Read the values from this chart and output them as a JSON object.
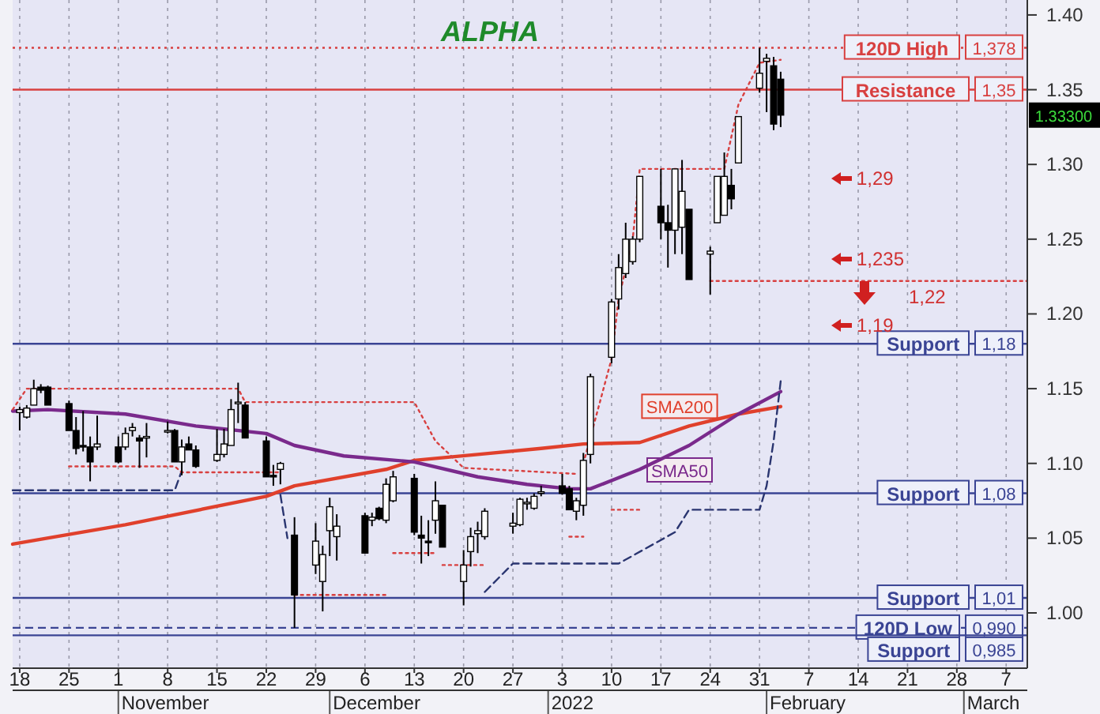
{
  "chart_data": {
    "type": "candlestick",
    "title": "ALPHA",
    "x": [
      "2021-10-18",
      "2021-10-19",
      "2021-10-20",
      "2021-10-21",
      "2021-10-22",
      "2021-10-25",
      "2021-10-26",
      "2021-10-27",
      "2021-10-28",
      "2021-10-29",
      "2021-11-01",
      "2021-11-02",
      "2021-11-03",
      "2021-11-04",
      "2021-11-05",
      "2021-11-08",
      "2021-11-09",
      "2021-11-10",
      "2021-11-11",
      "2021-11-12",
      "2021-11-15",
      "2021-11-16",
      "2021-11-17",
      "2021-11-18",
      "2021-11-19",
      "2021-11-22",
      "2021-11-23",
      "2021-11-24",
      "2021-11-26",
      "2021-11-29",
      "2021-11-30",
      "2021-12-01",
      "2021-12-02",
      "2021-12-06",
      "2021-12-07",
      "2021-12-08",
      "2021-12-09",
      "2021-12-10",
      "2021-12-13",
      "2021-12-14",
      "2021-12-15",
      "2021-12-16",
      "2021-12-17",
      "2021-12-20",
      "2021-12-21",
      "2021-12-22",
      "2021-12-23",
      "2021-12-27",
      "2021-12-28",
      "2021-12-29",
      "2021-12-30",
      "2021-12-31",
      "2022-01-03",
      "2022-01-04",
      "2022-01-05",
      "2022-01-06",
      "2022-01-07",
      "2022-01-10",
      "2022-01-11",
      "2022-01-12",
      "2022-01-13",
      "2022-01-14",
      "2022-01-17",
      "2022-01-18",
      "2022-01-19",
      "2022-01-20",
      "2022-01-21",
      "2022-01-24",
      "2022-01-25",
      "2022-01-26",
      "2022-01-27",
      "2022-01-28",
      "2022-01-31",
      "2022-02-01",
      "2022-02-02",
      "2022-02-03"
    ],
    "ohlc": [
      [
        1.134,
        1.138,
        1.122,
        1.136
      ],
      [
        1.131,
        1.139,
        1.13,
        1.137
      ],
      [
        1.139,
        1.156,
        1.139,
        1.15
      ],
      [
        1.151,
        1.153,
        1.147,
        1.149
      ],
      [
        1.151,
        1.152,
        1.139,
        1.139
      ],
      [
        1.14,
        1.142,
        1.122,
        1.122
      ],
      [
        1.122,
        1.131,
        1.106,
        1.11
      ],
      [
        1.112,
        1.135,
        1.108,
        1.111
      ],
      [
        1.111,
        1.118,
        1.088,
        1.101
      ],
      [
        1.111,
        1.132,
        1.109,
        1.113
      ],
      [
        1.111,
        1.118,
        1.1,
        1.101
      ],
      [
        1.111,
        1.124,
        1.109,
        1.12
      ],
      [
        1.122,
        1.127,
        1.118,
        1.124
      ],
      [
        1.117,
        1.119,
        1.097,
        1.115
      ],
      [
        1.117,
        1.127,
        1.104,
        1.118
      ],
      [
        1.121,
        1.128,
        1.12,
        1.122
      ],
      [
        1.122,
        1.123,
        1.101,
        1.101
      ],
      [
        1.101,
        1.116,
        1.092,
        1.111
      ],
      [
        1.113,
        1.118,
        1.109,
        1.109
      ],
      [
        1.109,
        1.112,
        1.097,
        1.098
      ],
      [
        1.102,
        1.123,
        1.101,
        1.106
      ],
      [
        1.106,
        1.123,
        1.104,
        1.113
      ],
      [
        1.112,
        1.143,
        1.112,
        1.136
      ],
      [
        1.14,
        1.154,
        1.127,
        1.141
      ],
      [
        1.139,
        1.141,
        1.117,
        1.117
      ],
      [
        1.115,
        1.118,
        1.091,
        1.091
      ],
      [
        1.092,
        1.099,
        1.085,
        1.091
      ],
      [
        1.096,
        1.101,
        1.086,
        1.1
      ],
      [
        1.052,
        1.064,
        0.99,
        1.012
      ],
      [
        1.032,
        1.06,
        1.026,
        1.048
      ],
      [
        1.021,
        1.045,
        1.001,
        1.039
      ],
      [
        1.055,
        1.077,
        1.038,
        1.071
      ],
      [
        1.051,
        1.066,
        1.035,
        1.058
      ],
      [
        1.065,
        1.067,
        1.04,
        1.04
      ],
      [
        1.062,
        1.067,
        1.058,
        1.064
      ],
      [
        1.07,
        1.071,
        1.062,
        1.063
      ],
      [
        1.062,
        1.09,
        1.06,
        1.086
      ],
      [
        1.075,
        1.095,
        1.074,
        1.091
      ],
      [
        1.09,
        1.093,
        1.052,
        1.054
      ],
      [
        1.052,
        1.065,
        1.033,
        1.05
      ],
      [
        1.048,
        1.062,
        1.038,
        1.047
      ],
      [
        1.062,
        1.088,
        1.053,
        1.075
      ],
      [
        1.072,
        1.072,
        1.044,
        1.044
      ],
      [
        1.021,
        1.042,
        1.005,
        1.032
      ],
      [
        1.041,
        1.057,
        1.031,
        1.051
      ],
      [
        1.053,
        1.061,
        1.04,
        1.055
      ],
      [
        1.051,
        1.07,
        1.049,
        1.068
      ],
      [
        1.058,
        1.067,
        1.053,
        1.06
      ],
      [
        1.059,
        1.077,
        1.058,
        1.076
      ],
      [
        1.073,
        1.077,
        1.069,
        1.074
      ],
      [
        1.07,
        1.08,
        1.069,
        1.078
      ],
      [
        1.08,
        1.085,
        1.078,
        1.081
      ],
      [
        1.085,
        1.093,
        1.079,
        1.08
      ],
      [
        1.083,
        1.085,
        1.069,
        1.069
      ],
      [
        1.068,
        1.077,
        1.062,
        1.075
      ],
      [
        1.072,
        1.107,
        1.065,
        1.102
      ],
      [
        1.106,
        1.16,
        1.1,
        1.158
      ],
      [
        1.171,
        1.21,
        1.167,
        1.208
      ],
      [
        1.21,
        1.24,
        1.203,
        1.231
      ],
      [
        1.227,
        1.261,
        1.224,
        1.25
      ],
      [
        1.235,
        1.252,
        1.233,
        1.25
      ],
      [
        1.25,
        1.292,
        1.248,
        1.292
      ],
      [
        1.272,
        1.297,
        1.25,
        1.261
      ],
      [
        1.261,
        1.273,
        1.231,
        1.256
      ],
      [
        1.256,
        1.297,
        1.24,
        1.297
      ],
      [
        1.258,
        1.303,
        1.24,
        1.282
      ],
      [
        1.27,
        1.27,
        1.223,
        1.223
      ],
      [
        1.24,
        1.245,
        1.213,
        1.242
      ],
      [
        1.261,
        1.292,
        1.261,
        1.292
      ],
      [
        1.266,
        1.308,
        1.266,
        1.292
      ],
      [
        1.286,
        1.297,
        1.27,
        1.277
      ],
      [
        1.301,
        1.332,
        1.301,
        1.332
      ],
      [
        1.351,
        1.378,
        1.348,
        1.361
      ],
      [
        1.369,
        1.374,
        1.335,
        1.371
      ],
      [
        1.366,
        1.372,
        1.323,
        1.327
      ],
      [
        1.357,
        1.362,
        1.325,
        1.333
      ]
    ],
    "series": [
      {
        "type": "line",
        "name": "SMA200",
        "color": "#e0402c",
        "x": [
          "2021-10-17",
          "2021-11-02",
          "2021-11-22",
          "2021-11-26",
          "2021-12-09",
          "2021-12-13",
          "2021-12-22",
          "2021-12-31",
          "2022-01-06",
          "2022-01-14",
          "2022-01-21",
          "2022-01-28",
          "2022-02-03"
        ],
        "values": [
          1.046,
          1.059,
          1.078,
          1.085,
          1.096,
          1.102,
          1.106,
          1.11,
          1.113,
          1.114,
          1.125,
          1.133,
          1.138
        ]
      },
      {
        "type": "line",
        "name": "SMA50",
        "color": "#7a2a8c",
        "x": [
          "2021-10-17",
          "2021-10-22",
          "2021-11-02",
          "2021-11-12",
          "2021-11-22",
          "2021-11-26",
          "2021-12-03",
          "2021-12-13",
          "2021-12-22",
          "2021-12-29",
          "2022-01-04",
          "2022-01-07",
          "2022-01-14",
          "2022-01-21",
          "2022-01-28",
          "2022-02-03"
        ],
        "values": [
          1.135,
          1.136,
          1.133,
          1.125,
          1.12,
          1.112,
          1.105,
          1.101,
          1.091,
          1.086,
          1.083,
          1.083,
          1.096,
          1.112,
          1.133,
          1.148
        ]
      },
      {
        "type": "line",
        "color": "#2a3570",
        "line_style": "dashed",
        "x": [
          "2021-10-17",
          "2021-11-09",
          "2021-11-10"
        ],
        "values": [
          1.082,
          1.082,
          1.095
        ]
      },
      {
        "type": "line",
        "color": "#2a3570",
        "line_style": "dashed",
        "x": [
          "2021-11-24",
          "2021-11-25"
        ],
        "values": [
          1.079,
          1.05
        ]
      },
      {
        "type": "line",
        "color": "#2a3570",
        "line_style": "dashed",
        "x": [
          "2021-12-23",
          "2021-12-27",
          "2022-01-11",
          "2022-01-19",
          "2022-01-21",
          "2022-01-28",
          "2022-01-31",
          "2022-02-01",
          "2022-02-02",
          "2022-02-03"
        ],
        "values": [
          1.014,
          1.033,
          1.033,
          1.054,
          1.069,
          1.069,
          1.069,
          1.085,
          1.115,
          1.155
        ]
      },
      {
        "type": "line",
        "color": "#d84040",
        "line_style": "dotted",
        "x": [
          "2021-10-17",
          "2021-10-19",
          "2021-11-18",
          "2021-11-19",
          "2021-12-13",
          "2021-12-16",
          "2021-12-20",
          "2022-01-05"
        ],
        "values": [
          1.136,
          1.15,
          1.15,
          1.141,
          1.141,
          1.115,
          1.097,
          1.093
        ]
      },
      {
        "type": "line",
        "color": "#d84040",
        "line_style": "dotted",
        "x": [
          "2022-01-06",
          "2022-01-10",
          "2022-01-11",
          "2022-01-13",
          "2022-01-14",
          "2022-01-26",
          "2022-01-28",
          "2022-01-31",
          "2022-02-03"
        ],
        "values": [
          1.1,
          1.17,
          1.21,
          1.25,
          1.297,
          1.297,
          1.34,
          1.368,
          1.37
        ]
      },
      {
        "type": "line",
        "color": "#d84040",
        "line_style": "dotted",
        "x": [
          "2021-10-25",
          "2021-11-09",
          "2021-11-10",
          "2021-11-24"
        ],
        "values": [
          1.098,
          1.098,
          1.094,
          1.094
        ]
      },
      {
        "type": "line",
        "color": "#d84040",
        "line_style": "dotted",
        "x": [
          "2021-11-26",
          "2021-12-09"
        ],
        "values": [
          1.012,
          1.012
        ]
      },
      {
        "type": "line",
        "color": "#d84040",
        "line_style": "dotted",
        "x": [
          "2021-12-10",
          "2021-12-16"
        ],
        "values": [
          1.04,
          1.04
        ]
      },
      {
        "type": "line",
        "color": "#d84040",
        "line_style": "dotted",
        "x": [
          "2021-12-17",
          "2021-12-23"
        ],
        "values": [
          1.032,
          1.032
        ]
      },
      {
        "type": "line",
        "color": "#d84040",
        "line_style": "dotted",
        "x": [
          "2022-01-04",
          "2022-01-06"
        ],
        "values": [
          1.051,
          1.051
        ]
      },
      {
        "type": "line",
        "color": "#d84040",
        "line_style": "dotted",
        "x": [
          "2022-01-10",
          "2022-01-14"
        ],
        "values": [
          1.069,
          1.069
        ]
      },
      {
        "type": "line",
        "color": "#d84040",
        "line_style": "dotted",
        "x": [
          "2022-01-24",
          "2022-03-10"
        ],
        "values": [
          1.222,
          1.222
        ]
      }
    ],
    "xlim": [
      "2021-10-17",
      "2022-03-10"
    ],
    "xticks": [
      {
        "value": "2021-10-18",
        "label": "18"
      },
      {
        "value": "2021-10-25",
        "label": "25"
      },
      {
        "value": "2021-11-01",
        "label": "1"
      },
      {
        "value": "2021-11-08",
        "label": "8"
      },
      {
        "value": "2021-11-15",
        "label": "15"
      },
      {
        "value": "2021-11-22",
        "label": "22"
      },
      {
        "value": "2021-11-29",
        "label": "29"
      },
      {
        "value": "2021-12-06",
        "label": "6"
      },
      {
        "value": "2021-12-13",
        "label": "13"
      },
      {
        "value": "2021-12-20",
        "label": "20"
      },
      {
        "value": "2021-12-27",
        "label": "27"
      },
      {
        "value": "2022-01-03",
        "label": "3"
      },
      {
        "value": "2022-01-10",
        "label": "10"
      },
      {
        "value": "2022-01-17",
        "label": "17"
      },
      {
        "value": "2022-01-24",
        "label": "24"
      },
      {
        "value": "2022-01-31",
        "label": "31"
      },
      {
        "value": "2022-02-07",
        "label": "7"
      },
      {
        "value": "2022-02-14",
        "label": "14"
      },
      {
        "value": "2022-02-21",
        "label": "21"
      },
      {
        "value": "2022-02-28",
        "label": "28"
      },
      {
        "value": "2022-03-07",
        "label": "7"
      }
    ],
    "ylim": [
      0.963,
      1.41
    ],
    "yticks": [
      {
        "value": 1.0,
        "label": "1.00"
      },
      {
        "value": 1.05,
        "label": "1.05"
      },
      {
        "value": 1.1,
        "label": "1.10"
      },
      {
        "value": 1.15,
        "label": "1.15"
      },
      {
        "value": 1.2,
        "label": "1.20"
      },
      {
        "value": 1.25,
        "label": "1.25"
      },
      {
        "value": 1.3,
        "label": "1.30"
      },
      {
        "value": 1.35,
        "label": "1.35"
      },
      {
        "value": 1.4,
        "label": "1.40"
      }
    ],
    "grid": "x",
    "ref_lines": [
      {
        "axis": "y",
        "value": 1.378,
        "label": "120D High",
        "color": "#d84040",
        "line_style": "dotted"
      },
      {
        "axis": "y",
        "value": 1.35,
        "label": "Resistance",
        "color": "#d84040",
        "line_style": "solid"
      },
      {
        "axis": "y",
        "value": 1.18,
        "label": "Support",
        "color": "#3a4494",
        "line_style": "solid"
      },
      {
        "axis": "y",
        "value": 1.08,
        "label": "Support",
        "color": "#3a4494",
        "line_style": "solid"
      },
      {
        "axis": "y",
        "value": 1.01,
        "label": "Support",
        "color": "#3a4494",
        "line_style": "solid"
      },
      {
        "axis": "y",
        "value": 0.99,
        "label": "120D Low",
        "color": "#3a4494",
        "line_style": "dashed"
      },
      {
        "axis": "y",
        "value": 0.985,
        "label": "Support",
        "color": "#3a4494",
        "line_style": "solid"
      }
    ],
    "annotations": [
      "1,29",
      "1,235",
      "1,19",
      "1,22",
      "1.33300",
      "November",
      "December",
      "2022",
      "February",
      "March",
      "1,378",
      "1,35",
      "1,18",
      "1,08",
      "1,01",
      "0,990",
      "0,985"
    ]
  }
}
